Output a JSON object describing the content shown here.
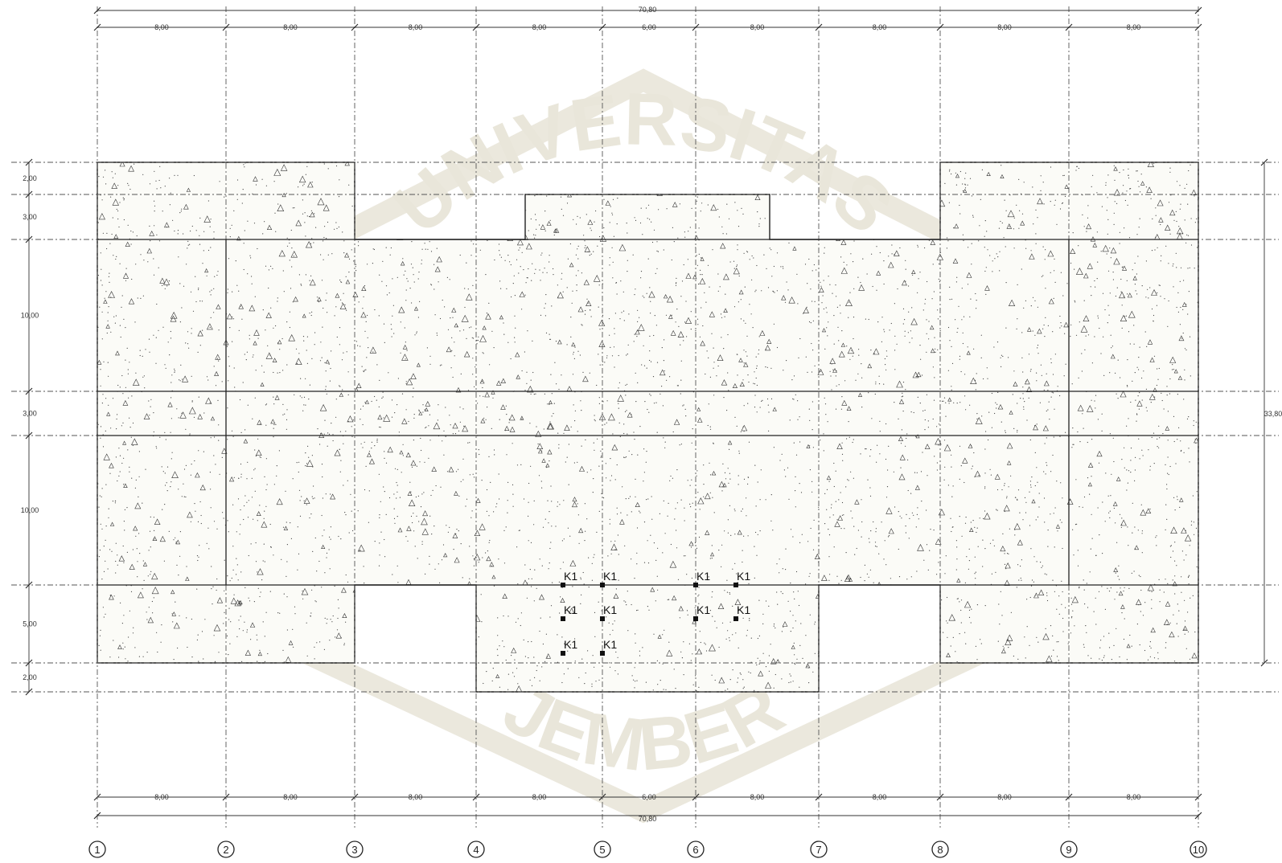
{
  "top_dimensions": {
    "total": "70,80",
    "spans": [
      "8,00",
      "8,00",
      "8,00",
      "8,00",
      "6,00",
      "8,00",
      "8,00",
      "8,00",
      "8,00"
    ]
  },
  "bottom_dimensions": {
    "total": "70,80",
    "spans": [
      "8,00",
      "8,00",
      "8,00",
      "8,00",
      "6,00",
      "8,00",
      "8,00",
      "8,00",
      "8,00"
    ]
  },
  "left_dimensions": [
    "2,00",
    "3,00",
    "10,00",
    "3,00",
    "10,00",
    "5,00",
    "2,00"
  ],
  "right_dimension": "33,80",
  "grid_axes": [
    "1",
    "2",
    "3",
    "4",
    "5",
    "6",
    "7",
    "8",
    "9",
    "10"
  ],
  "column_label": "K1",
  "watermark": {
    "word_top": "UNIVERSITAS",
    "word_bottom": "JEMBER",
    "color": "#e9e6da"
  },
  "colors": {
    "lines": "#222222",
    "hatch_dots": "#333333",
    "background": "#ffffff"
  }
}
